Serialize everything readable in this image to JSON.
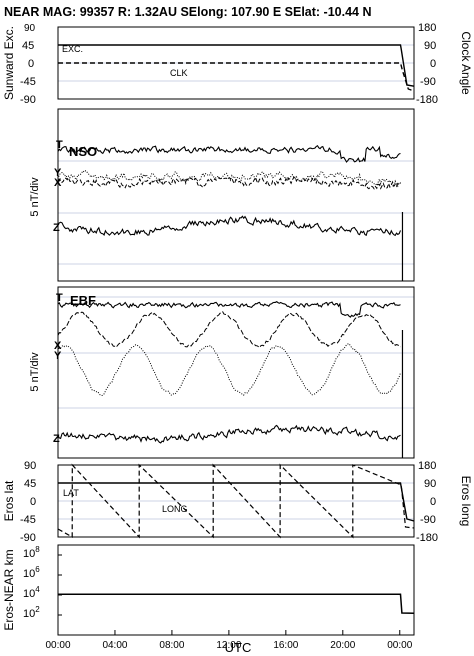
{
  "header": {
    "title": "NEAR MAG: 99357  R: 1.32AU  SElong: 107.90 E  SElat:  -10.44 N"
  },
  "chart_data": [
    {
      "id": "sunward",
      "type": "line",
      "ylabel_left": "Sunward Exc.",
      "ylabel_right": "Clock Angle",
      "left_ticks": [
        "45",
        "0",
        "-45",
        "-90"
      ],
      "left_ticks_top": "90",
      "right_ticks": [
        "180",
        "90",
        "0",
        "-90",
        "-180"
      ],
      "ylim_left": [
        -90,
        90
      ],
      "ylim_right": [
        -180,
        180
      ],
      "annotations": {
        "exc": "EXC.",
        "clk": "CLK"
      },
      "series": [
        {
          "key": "exc",
          "style": "solid",
          "x": [
            0,
            24.05,
            24.1,
            24.5,
            25.0
          ],
          "y": [
            45,
            45,
            35,
            -55,
            -58
          ]
        },
        {
          "key": "clk",
          "style": "dashed",
          "axis": "right",
          "x": [
            0,
            24.05,
            24.2,
            24.6,
            25.0
          ],
          "y": [
            0,
            0,
            -40,
            -130,
            -140
          ]
        }
      ]
    },
    {
      "id": "nso",
      "type": "line",
      "panel_label": "NSO",
      "ylabel": "5 nT/div",
      "trace_labels": {
        "t": "T",
        "x": "X",
        "y": "Y",
        "z": "Z"
      }
    },
    {
      "id": "ebf",
      "type": "line",
      "panel_label": "EBF",
      "ylabel": "5 nT/div",
      "trace_labels": {
        "t": "T",
        "x": "X",
        "y": "Y",
        "z": "Z"
      }
    },
    {
      "id": "eros",
      "type": "line",
      "ylabel_left": "Eros lat",
      "ylabel_right": "Eros long",
      "left_ticks": [
        "90",
        "45",
        "0",
        "-45",
        "-90"
      ],
      "right_ticks": [
        "180",
        "90",
        "0",
        "-90",
        "-180"
      ],
      "ylim_left": [
        -90,
        90
      ],
      "ylim_right": [
        -180,
        180
      ],
      "annotations": {
        "lat": "LAT",
        "long": "LONG"
      },
      "series": [
        {
          "key": "lat",
          "style": "solid",
          "x": [
            0,
            24.05,
            24.2,
            24.5,
            25.0
          ],
          "y": [
            45,
            45,
            15,
            -45,
            -50
          ]
        },
        {
          "key": "long",
          "style": "dashed",
          "axis": "right",
          "x": [
            -0.3,
            1.0,
            1.001,
            5.7,
            5.701,
            10.9,
            10.901,
            15.6,
            15.601,
            20.7,
            20.701,
            24.1,
            24.4,
            25.0
          ],
          "y": [
            -140,
            -180,
            180,
            -180,
            180,
            -180,
            180,
            -180,
            180,
            -180,
            180,
            80,
            -130,
            -135
          ]
        }
      ]
    },
    {
      "id": "distance",
      "type": "line",
      "ylabel": "Eros-NEAR km",
      "yscale": "log",
      "ylim": [
        1,
        1000000000
      ],
      "ticks": [
        {
          "base": "10",
          "exp": "8",
          "value": 100000000
        },
        {
          "base": "10",
          "exp": "6",
          "value": 1000000
        },
        {
          "base": "10",
          "exp": "4",
          "value": 10000
        },
        {
          "base": "10",
          "exp": "2",
          "value": 100
        }
      ],
      "series": [
        {
          "key": "distance",
          "style": "solid",
          "x": [
            0,
            24.05,
            24.15,
            25.0
          ],
          "y": [
            12000,
            12000,
            160,
            150
          ]
        }
      ],
      "xlabel": "UTC",
      "xlim": [
        0,
        25
      ],
      "x_ticks": [
        {
          "label": "00:00",
          "hour": 0
        },
        {
          "label": "04:00",
          "hour": 4
        },
        {
          "label": "08:00",
          "hour": 8
        },
        {
          "label": "12:00",
          "hour": 12
        },
        {
          "label": "16:00",
          "hour": 16
        },
        {
          "label": "20:00",
          "hour": 20
        },
        {
          "label": "00:00",
          "hour": 24
        }
      ]
    }
  ]
}
